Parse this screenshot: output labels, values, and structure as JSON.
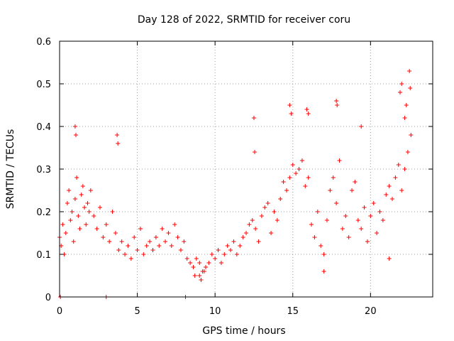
{
  "chart_data": {
    "type": "scatter",
    "title": "Day 128 of 2022, SRMTID for receiver coru",
    "xlabel": "GPS time / hours",
    "ylabel": "SRMTID / TECUs",
    "xlim": [
      0,
      24
    ],
    "ylim": [
      0,
      0.6
    ],
    "xticks": [
      0,
      5,
      10,
      15,
      20
    ],
    "yticks": [
      0,
      0.1,
      0.2,
      0.3,
      0.4,
      0.5,
      0.6
    ],
    "ytick_labels": [
      "0",
      "0.1",
      "0.2",
      "0.3",
      "0.4",
      "0.5",
      "0.6"
    ],
    "grid": true,
    "marker": "+",
    "series": [
      {
        "name": "SRMTID",
        "color": "#ff0000",
        "x": [
          0.0,
          0.1,
          0.2,
          0.3,
          0.4,
          0.5,
          0.6,
          0.7,
          0.8,
          0.9,
          1.0,
          1.1,
          1.2,
          1.3,
          1.4,
          1.5,
          1.6,
          1.7,
          1.8,
          1.9,
          2.0,
          2.2,
          2.4,
          2.6,
          2.8,
          3.0,
          3.2,
          3.4,
          3.6,
          3.8,
          4.0,
          4.2,
          4.4,
          4.6,
          4.8,
          5.0,
          5.2,
          5.4,
          5.6,
          5.8,
          6.0,
          6.2,
          6.4,
          6.6,
          6.8,
          7.0,
          7.2,
          7.4,
          7.6,
          7.8,
          8.0,
          8.2,
          8.4,
          8.6,
          8.8,
          9.0,
          9.2,
          9.4,
          9.6,
          9.8,
          10.0,
          10.2,
          10.4,
          10.6,
          10.8,
          11.0,
          11.2,
          11.4,
          11.6,
          11.8,
          12.0,
          12.2,
          12.4,
          12.6,
          12.8,
          13.0,
          13.2,
          13.4,
          13.6,
          13.8,
          14.0,
          14.2,
          14.4,
          14.6,
          14.8,
          15.0,
          15.2,
          15.4,
          15.6,
          15.8,
          16.0,
          16.2,
          16.4,
          16.6,
          16.8,
          17.0,
          17.2,
          17.4,
          17.6,
          17.8,
          18.0,
          18.2,
          18.4,
          18.6,
          18.8,
          19.0,
          19.2,
          19.4,
          19.6,
          19.8,
          20.0,
          20.2,
          20.4,
          20.6,
          20.8,
          21.0,
          21.2,
          21.4,
          21.6,
          21.8,
          22.0,
          22.2,
          22.4,
          22.6,
          1.0,
          1.05,
          3.7,
          3.75,
          12.5,
          12.55,
          14.8,
          14.9,
          15.9,
          16.0,
          17.8,
          17.85,
          19.4,
          21.9,
          22.0,
          22.2,
          22.3,
          22.5,
          22.55,
          0.05,
          3.0,
          8.1,
          9.0,
          9.1,
          9.3,
          8.7,
          17.0,
          21.2
        ],
        "y": [
          0.14,
          0.12,
          0.17,
          0.1,
          0.15,
          0.22,
          0.25,
          0.18,
          0.2,
          0.13,
          0.23,
          0.28,
          0.19,
          0.16,
          0.24,
          0.26,
          0.21,
          0.17,
          0.22,
          0.2,
          0.25,
          0.19,
          0.16,
          0.21,
          0.14,
          0.17,
          0.13,
          0.2,
          0.15,
          0.11,
          0.13,
          0.1,
          0.12,
          0.09,
          0.14,
          0.11,
          0.16,
          0.1,
          0.12,
          0.13,
          0.11,
          0.14,
          0.12,
          0.16,
          0.13,
          0.15,
          0.12,
          0.17,
          0.14,
          0.11,
          0.13,
          0.09,
          0.08,
          0.07,
          0.09,
          0.08,
          0.06,
          0.07,
          0.08,
          0.1,
          0.09,
          0.11,
          0.08,
          0.1,
          0.12,
          0.11,
          0.13,
          0.1,
          0.12,
          0.14,
          0.15,
          0.17,
          0.18,
          0.16,
          0.13,
          0.19,
          0.21,
          0.22,
          0.15,
          0.2,
          0.18,
          0.23,
          0.27,
          0.25,
          0.28,
          0.31,
          0.29,
          0.3,
          0.32,
          0.26,
          0.28,
          0.17,
          0.14,
          0.2,
          0.12,
          0.1,
          0.18,
          0.25,
          0.28,
          0.22,
          0.32,
          0.16,
          0.19,
          0.14,
          0.25,
          0.27,
          0.18,
          0.16,
          0.21,
          0.13,
          0.19,
          0.22,
          0.15,
          0.2,
          0.18,
          0.24,
          0.26,
          0.23,
          0.28,
          0.31,
          0.25,
          0.3,
          0.34,
          0.38,
          0.4,
          0.38,
          0.38,
          0.36,
          0.42,
          0.34,
          0.45,
          0.43,
          0.44,
          0.43,
          0.46,
          0.45,
          0.4,
          0.48,
          0.5,
          0.42,
          0.45,
          0.53,
          0.49,
          0.0,
          0.0,
          0.0,
          0.05,
          0.04,
          0.06,
          0.05,
          0.06,
          0.09
        ]
      }
    ]
  }
}
